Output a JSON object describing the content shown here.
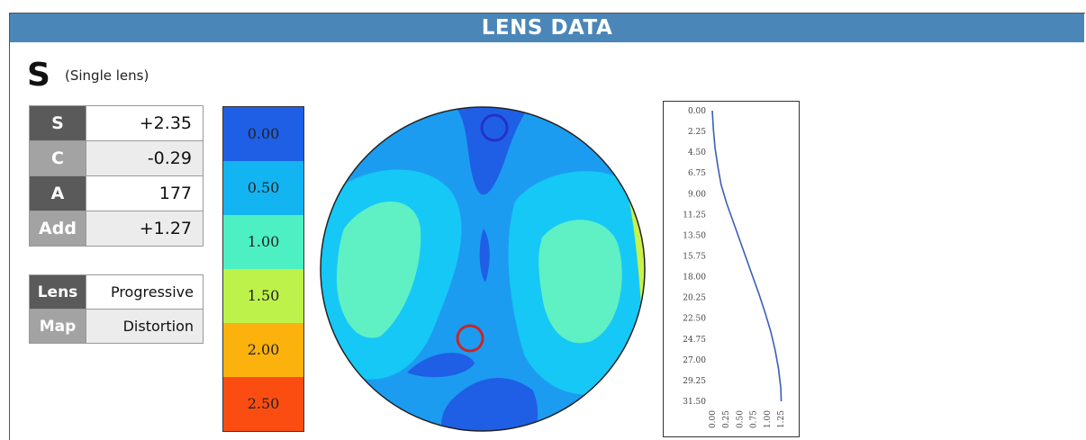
{
  "header": {
    "title": "LENS DATA"
  },
  "lens": {
    "letter": "S",
    "description": "(Single lens)"
  },
  "prescription": [
    {
      "label": "S",
      "value": "+2.35"
    },
    {
      "label": "C",
      "value": "-0.29"
    },
    {
      "label": "A",
      "value": "177"
    },
    {
      "label": "Add",
      "value": "+1.27"
    }
  ],
  "info": [
    {
      "label": "Lens",
      "value": "Progressive"
    },
    {
      "label": "Map",
      "value": "Distortion"
    }
  ],
  "legend": {
    "levels": [
      "0.00",
      "0.50",
      "1.00",
      "1.50",
      "2.00",
      "2.50"
    ],
    "colors": [
      "#1f5fe6",
      "#13b4f2",
      "#4df0c2",
      "#bdf24a",
      "#fbb20c",
      "#fb4d12"
    ]
  },
  "profile_chart": {
    "y_ticks": [
      "0.00",
      "2.25",
      "4.50",
      "6.75",
      "9.00",
      "11.25",
      "13.50",
      "15.75",
      "18.00",
      "20.25",
      "22.50",
      "24.75",
      "27.00",
      "29.25",
      "31.50"
    ],
    "x_ticks": [
      "0.00",
      "0.25",
      "0.50",
      "0.75",
      "1.00",
      "1.25"
    ]
  },
  "chart_data": {
    "type": "line",
    "x": [
      0.0,
      0.02,
      0.05,
      0.1,
      0.16,
      0.26,
      0.38,
      0.5,
      0.62,
      0.74,
      0.86,
      0.97,
      1.07,
      1.15,
      1.21,
      1.25,
      1.26
    ],
    "y": [
      0.0,
      2.0,
      4.0,
      6.0,
      8.0,
      10.0,
      12.0,
      14.0,
      16.0,
      18.0,
      20.0,
      22.0,
      24.0,
      26.0,
      28.0,
      30.0,
      31.5
    ],
    "xlim": [
      0.0,
      1.25
    ],
    "ylim": [
      0.0,
      31.5
    ],
    "y_inverted": true,
    "grid": false,
    "line_color": "#3a5fb8"
  }
}
